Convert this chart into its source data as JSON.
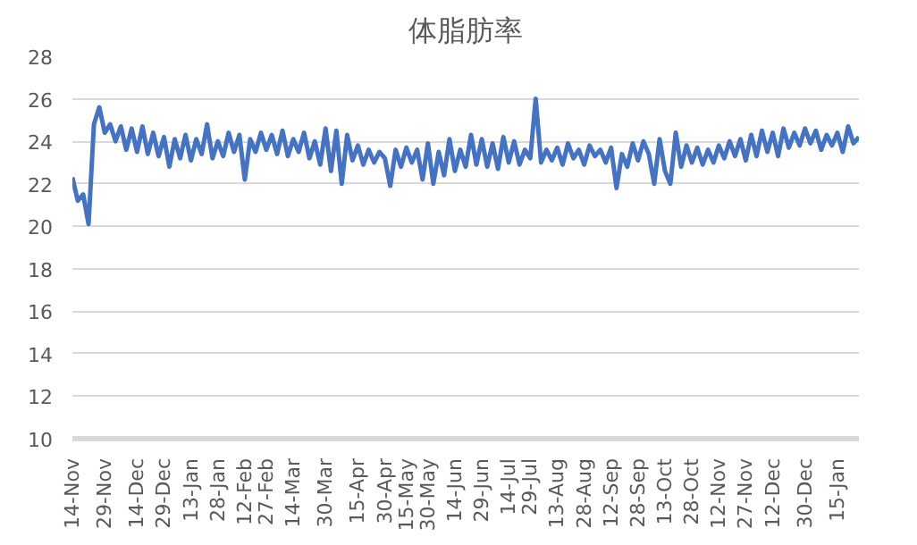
{
  "chart_data": {
    "type": "line",
    "title": "体脂肪率",
    "grid": "y",
    "marker": "none",
    "line_style": "solid",
    "categories": [
      "14-Nov",
      null,
      null,
      null,
      null,
      null,
      "29-Nov",
      null,
      null,
      null,
      null,
      null,
      "14-Dec",
      null,
      null,
      null,
      null,
      "29-Dec",
      null,
      null,
      null,
      null,
      "13-Jan",
      null,
      null,
      null,
      null,
      "28-Jan",
      null,
      null,
      null,
      null,
      "12-Feb",
      null,
      null,
      null,
      "27-Feb",
      null,
      null,
      null,
      null,
      "14-Mar",
      null,
      null,
      null,
      null,
      null,
      "30-Mar",
      null,
      null,
      null,
      null,
      null,
      "15-Apr",
      null,
      null,
      null,
      null,
      "30-Apr",
      null,
      null,
      null,
      "15-May",
      null,
      null,
      null,
      "30-May",
      null,
      null,
      null,
      null,
      "14-Jun",
      null,
      null,
      null,
      null,
      "29-Jun",
      null,
      null,
      null,
      null,
      "14-Jul",
      null,
      null,
      null,
      "29-Jul",
      null,
      null,
      null,
      null,
      "13-Aug",
      null,
      null,
      null,
      null,
      "28-Aug",
      null,
      null,
      null,
      null,
      "12-Sep",
      null,
      null,
      null,
      null,
      "28-Sep",
      null,
      null,
      null,
      null,
      "13-Oct",
      null,
      null,
      null,
      null,
      "28-Oct",
      null,
      null,
      null,
      null,
      "12-Nov",
      null,
      null,
      null,
      null,
      "27-Nov",
      null,
      null,
      null,
      null,
      "12-Dec",
      null,
      null,
      null,
      null,
      null,
      "30-Dec",
      null,
      null,
      null,
      null,
      null,
      "15-Jan",
      null,
      null,
      null,
      null
    ],
    "series": [
      {
        "color": "#4472c4",
        "values": [
          22.3,
          21.2,
          21.5,
          20.1,
          24.8,
          25.6,
          24.4,
          24.8,
          24.0,
          24.7,
          23.6,
          24.6,
          23.5,
          24.7,
          23.4,
          24.4,
          23.3,
          24.2,
          22.8,
          24.1,
          23.2,
          24.3,
          23.1,
          24.1,
          23.4,
          24.8,
          23.2,
          24.0,
          23.3,
          24.4,
          23.5,
          24.3,
          22.2,
          24.1,
          23.5,
          24.4,
          23.6,
          24.3,
          23.4,
          24.5,
          23.3,
          24.1,
          23.5,
          24.4,
          23.2,
          24.0,
          22.9,
          24.6,
          22.6,
          24.5,
          22.0,
          24.3,
          23.1,
          23.8,
          22.9,
          23.6,
          23.0,
          23.5,
          23.2,
          21.9,
          23.6,
          22.8,
          23.7,
          23.0,
          23.6,
          22.2,
          23.9,
          22.0,
          23.5,
          22.4,
          24.1,
          22.6,
          23.6,
          22.8,
          24.3,
          22.9,
          24.1,
          22.8,
          23.9,
          22.7,
          24.2,
          23.0,
          24.0,
          22.9,
          23.6,
          23.2,
          26.0,
          23.0,
          23.6,
          23.1,
          23.7,
          22.9,
          23.9,
          23.2,
          23.6,
          22.9,
          23.8,
          23.3,
          23.6,
          23.0,
          23.7,
          21.8,
          23.4,
          22.8,
          23.9,
          23.1,
          24.0,
          23.4,
          22.0,
          24.1,
          22.6,
          22.0,
          24.4,
          22.8,
          23.8,
          23.0,
          23.7,
          22.9,
          23.6,
          23.0,
          23.8,
          23.2,
          24.0,
          23.3,
          24.1,
          23.1,
          24.3,
          23.3,
          24.5,
          23.5,
          24.4,
          23.3,
          24.6,
          23.7,
          24.4,
          23.8,
          24.6,
          23.9,
          24.5,
          23.6,
          24.3,
          23.8,
          24.4,
          23.5,
          24.7,
          23.9,
          24.2
        ]
      }
    ],
    "ylim": [
      10,
      28
    ],
    "yticks": [
      10,
      12,
      14,
      16,
      18,
      20,
      22,
      24,
      26,
      28
    ]
  }
}
